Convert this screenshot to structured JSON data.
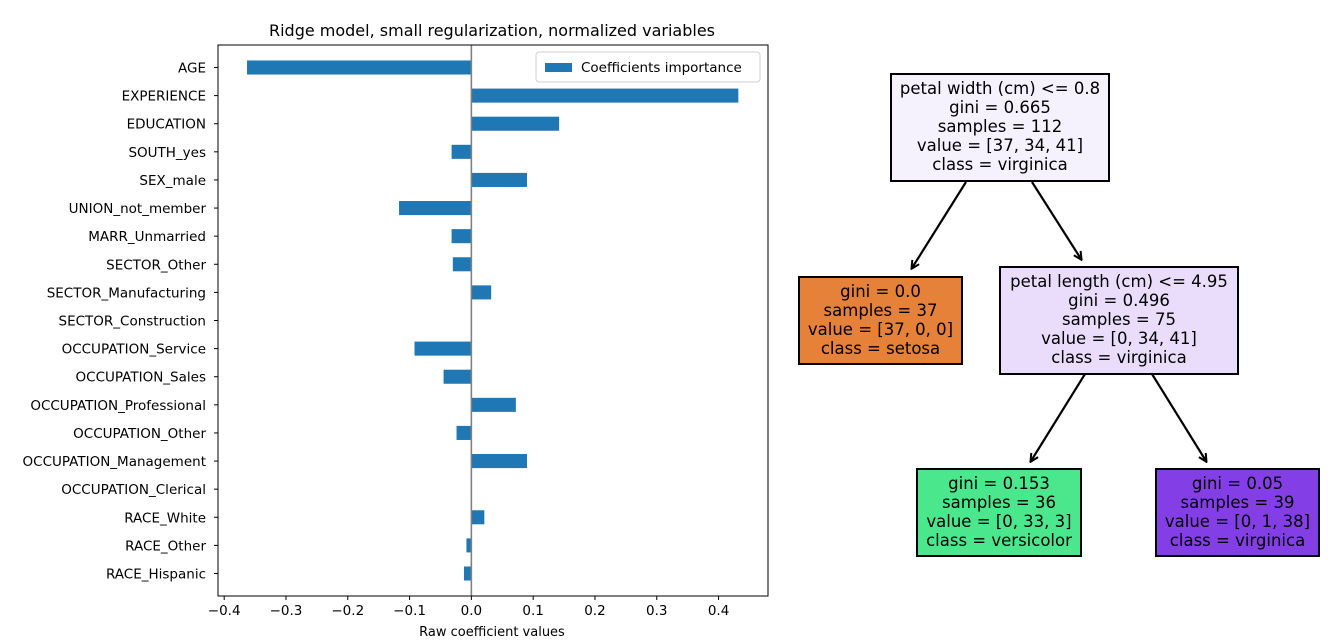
{
  "chart_data": {
    "type": "bar",
    "orientation": "horizontal",
    "title": "Ridge model, small regularization, normalized variables",
    "xlabel": "Raw coefficient values",
    "ylabel": "",
    "xlim": [
      -0.41,
      0.48
    ],
    "xticks": [
      -0.4,
      -0.3,
      -0.2,
      -0.1,
      0.0,
      0.1,
      0.2,
      0.3,
      0.4
    ],
    "xtick_labels": [
      "−0.4",
      "−0.3",
      "−0.2",
      "−0.1",
      "0.0",
      "0.1",
      "0.2",
      "0.3",
      "0.4"
    ],
    "legend_position": "top-right",
    "series": [
      {
        "name": "Coefficients importance",
        "color": "#1f77b4",
        "categories": [
          "AGE",
          "EXPERIENCE",
          "EDUCATION",
          "SOUTH_yes",
          "SEX_male",
          "UNION_not_member",
          "MARR_Unmarried",
          "SECTOR_Other",
          "SECTOR_Manufacturing",
          "SECTOR_Construction",
          "OCCUPATION_Service",
          "OCCUPATION_Sales",
          "OCCUPATION_Professional",
          "OCCUPATION_Other",
          "OCCUPATION_Management",
          "OCCUPATION_Clerical",
          "RACE_White",
          "RACE_Other",
          "RACE_Hispanic"
        ],
        "values": [
          -0.363,
          0.432,
          0.142,
          -0.032,
          0.09,
          -0.117,
          -0.032,
          -0.03,
          0.032,
          0.0,
          -0.092,
          -0.045,
          0.072,
          -0.024,
          0.09,
          0.0,
          0.021,
          -0.008,
          -0.012
        ]
      }
    ],
    "zero_line_color": "#808080"
  },
  "tree": {
    "nodes": [
      {
        "id": "root",
        "lines": [
          "petal width (cm) <= 0.8",
          "gini = 0.665",
          "samples = 112",
          "value = [37, 34, 41]",
          "class = virginica"
        ],
        "color": "#f5f2fe"
      },
      {
        "id": "left",
        "lines": [
          "gini = 0.0",
          "samples = 37",
          "value = [37, 0, 0]",
          "class = setosa"
        ],
        "color": "#e58139"
      },
      {
        "id": "right",
        "lines": [
          "petal length (cm) <= 4.95",
          "gini = 0.496",
          "samples = 75",
          "value = [0, 34, 41]",
          "class = virginica"
        ],
        "color": "#e9ddfb"
      },
      {
        "id": "right-left",
        "lines": [
          "gini = 0.153",
          "samples = 36",
          "value = [0, 33, 3]",
          "class = versicolor"
        ],
        "color": "#4be78c"
      },
      {
        "id": "right-right",
        "lines": [
          "gini = 0.05",
          "samples = 39",
          "value = [0, 1, 38]",
          "class = virginica"
        ],
        "color": "#843ee6"
      }
    ]
  }
}
